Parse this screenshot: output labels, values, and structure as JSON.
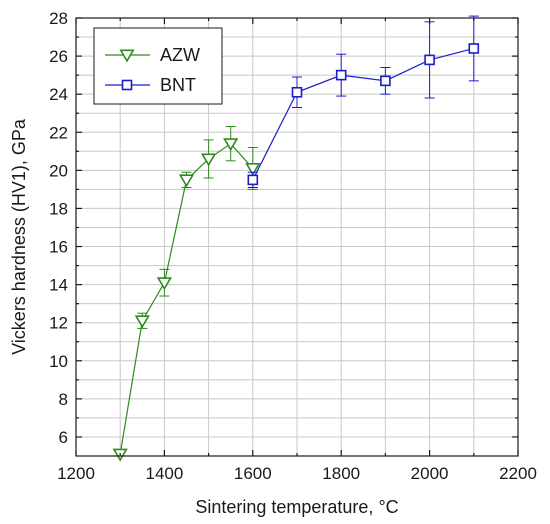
{
  "chart_data": {
    "type": "line",
    "title": "",
    "xlabel": "Sintering temperature, °C",
    "ylabel": "Vickers hardness (HV1), GPa",
    "xlim": [
      1200,
      2200
    ],
    "ylim": [
      5,
      28
    ],
    "x_ticks": [
      "1200",
      "1400",
      "1600",
      "1800",
      "2000",
      "2200"
    ],
    "y_ticks": [
      "6",
      "8",
      "10",
      "12",
      "14",
      "16",
      "18",
      "20",
      "22",
      "24",
      "26",
      "28"
    ],
    "grid": true,
    "legend_position": "top-left",
    "series": [
      {
        "name": "AZW",
        "color": "#2e8b1e",
        "marker": "triangle-down",
        "points": [
          {
            "x": 1300,
            "y": 5.1,
            "err": 0
          },
          {
            "x": 1350,
            "y": 12.1,
            "err": 0.4
          },
          {
            "x": 1400,
            "y": 14.1,
            "err": 0.7
          },
          {
            "x": 1450,
            "y": 19.5,
            "err": 0.4
          },
          {
            "x": 1500,
            "y": 20.6,
            "err": 1.0
          },
          {
            "x": 1550,
            "y": 21.4,
            "err": 0.9
          },
          {
            "x": 1600,
            "y": 20.1,
            "err": 1.1
          }
        ]
      },
      {
        "name": "BNT",
        "color": "#1c1ccf",
        "marker": "square",
        "points": [
          {
            "x": 1600,
            "y": 19.5,
            "err": 0.4
          },
          {
            "x": 1700,
            "y": 24.1,
            "err": 0.8
          },
          {
            "x": 1800,
            "y": 25.0,
            "err": 1.1
          },
          {
            "x": 1900,
            "y": 24.7,
            "err": 0.7
          },
          {
            "x": 2000,
            "y": 25.8,
            "err": 2.0
          },
          {
            "x": 2100,
            "y": 26.4,
            "err": 1.7
          }
        ]
      }
    ]
  }
}
